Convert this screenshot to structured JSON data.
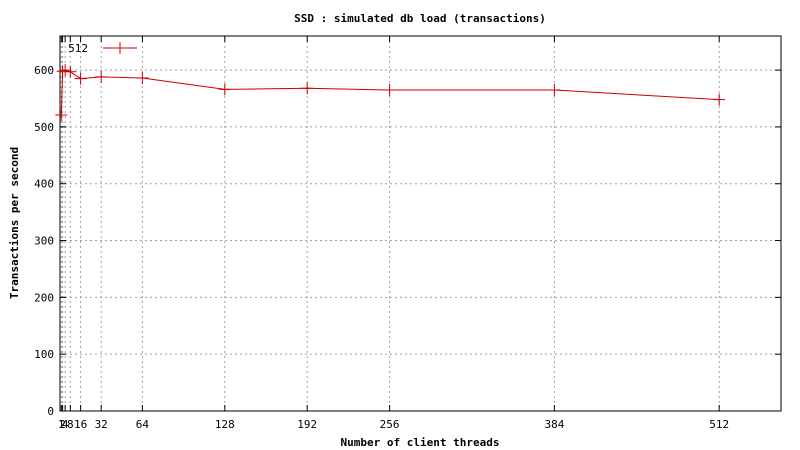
{
  "chart_data": {
    "type": "line",
    "title": "SSD : simulated db load (transactions)",
    "xlabel": "Number of client threads",
    "ylabel": "Transactions per second",
    "xlim": [
      0,
      560
    ],
    "ylim": [
      0,
      660
    ],
    "x_ticks": [
      1,
      2,
      4,
      8,
      16,
      32,
      64,
      128,
      192,
      256,
      384,
      512
    ],
    "x_tick_labels": [
      "1",
      "2",
      "4",
      "8",
      "16",
      "32",
      "64",
      "128",
      "192",
      "256",
      "384",
      "512"
    ],
    "y_ticks": [
      0,
      100,
      200,
      300,
      400,
      500,
      600
    ],
    "y_tick_labels": [
      "0",
      "100",
      "200",
      "300",
      "400",
      "500",
      "600"
    ],
    "grid": true,
    "legend_position": "top-left",
    "series": [
      {
        "name": "512",
        "color": "#cc0000",
        "marker": "plus",
        "x": [
          1,
          2,
          4,
          8,
          16,
          32,
          64,
          128,
          192,
          256,
          384,
          512
        ],
        "y": [
          521,
          598,
          600,
          597,
          585,
          588,
          586,
          566,
          568,
          565,
          565,
          548
        ]
      }
    ]
  }
}
